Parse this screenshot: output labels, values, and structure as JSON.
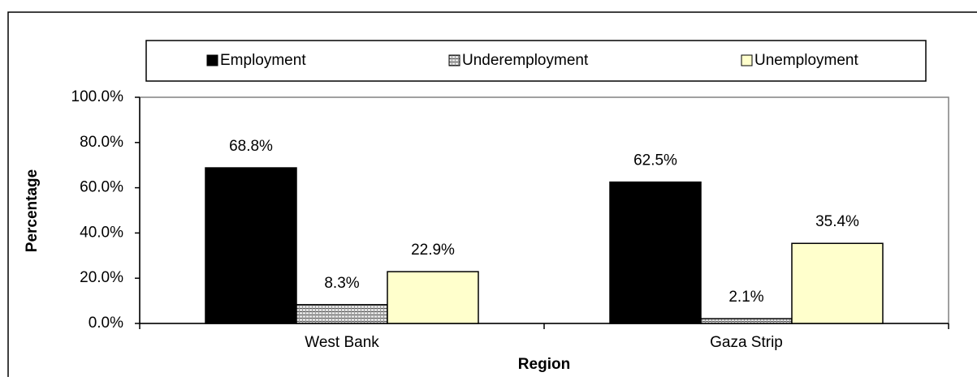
{
  "chart_data": {
    "type": "bar",
    "categories": [
      "West Bank",
      "Gaza Strip"
    ],
    "series": [
      {
        "name": "Employment",
        "color": "#000000",
        "values": [
          68.8,
          62.5
        ],
        "value_labels": [
          "68.8%",
          "62.5%"
        ]
      },
      {
        "name": "Underemployment",
        "color": "#e0e0e0",
        "pattern": true,
        "values": [
          8.3,
          2.1
        ],
        "value_labels": [
          "8.3%",
          "2.1%"
        ]
      },
      {
        "name": "Unemployment",
        "color": "#ffffcc",
        "values": [
          22.9,
          35.4
        ],
        "value_labels": [
          "22.9%",
          "35.4%"
        ]
      }
    ],
    "ylim": [
      0,
      100
    ],
    "yticks": [
      {
        "value": 0,
        "label": "0.0%"
      },
      {
        "value": 20,
        "label": "20.0%"
      },
      {
        "value": 40,
        "label": "40.0%"
      },
      {
        "value": 60,
        "label": "60.0%"
      },
      {
        "value": 80,
        "label": "80.0%"
      },
      {
        "value": 100,
        "label": "100.0%"
      }
    ],
    "y_label": "Percentage",
    "x_label": "Region",
    "legend": "top",
    "grid": false
  }
}
